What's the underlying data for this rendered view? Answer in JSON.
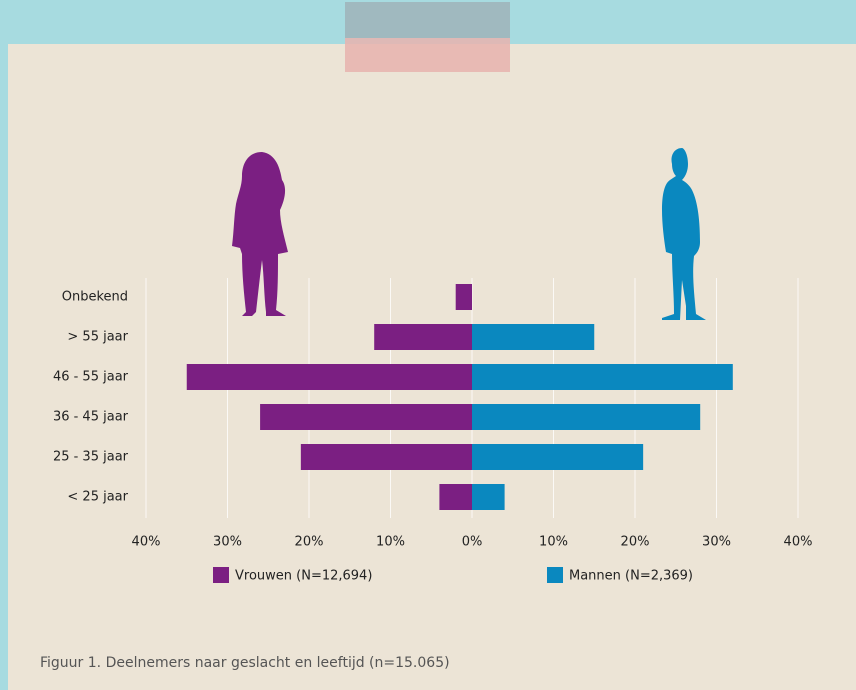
{
  "chart_data": {
    "type": "bar",
    "orientation": "horizontal",
    "caption": "Figuur 1. Deelnemers naar geslacht en leeftijd (n=15.065)",
    "categories": [
      "Onbekend",
      "> 55 jaar",
      "46 - 55 jaar",
      "36 - 45 jaar",
      "25 - 35 jaar",
      "< 25 jaar"
    ],
    "series": [
      {
        "name": "Vrouwen (N=12,694)",
        "color": "#7b1f82",
        "values": [
          -2,
          -12,
          -35,
          -26,
          -21,
          -4
        ]
      },
      {
        "name": "Mannen (N=2,369)",
        "color": "#0a88bf",
        "values": [
          0,
          15,
          32,
          28,
          21,
          4
        ]
      }
    ],
    "xlim": [
      -40,
      40
    ],
    "xticks": [
      {
        "value": -40,
        "label": "40%"
      },
      {
        "value": -30,
        "label": "30%"
      },
      {
        "value": -20,
        "label": "20%"
      },
      {
        "value": -10,
        "label": "10%"
      },
      {
        "value": 0,
        "label": "0%"
      },
      {
        "value": 10,
        "label": "10%"
      },
      {
        "value": 20,
        "label": "20%"
      },
      {
        "value": 30,
        "label": "30%"
      },
      {
        "value": 40,
        "label": "40%"
      }
    ],
    "grid": true
  }
}
